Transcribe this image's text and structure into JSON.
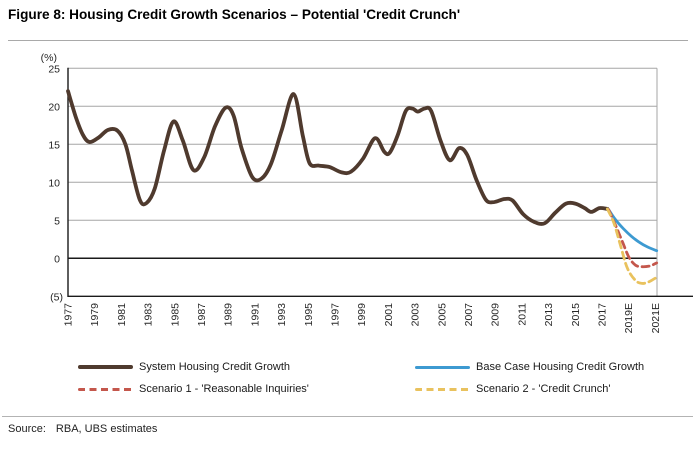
{
  "title": "Figure 8: Housing Credit Growth Scenarios – Potential 'Credit Crunch'",
  "source": {
    "label": "Source:",
    "value": "RBA, UBS estimates"
  },
  "chart_data": {
    "type": "line",
    "title": "Housing Credit Growth Scenarios – Potential 'Credit Crunch'",
    "y_axis": {
      "unit": "(%)",
      "ticks": [
        25,
        20,
        15,
        10,
        5,
        0,
        -5
      ],
      "tick_labels": [
        "25",
        "20",
        "15",
        "10",
        "5",
        "0",
        "(5)"
      ],
      "range": [
        -5,
        25
      ],
      "grid": true
    },
    "x_axis": {
      "tick_labels": [
        "1977",
        "1979",
        "1981",
        "1983",
        "1985",
        "1987",
        "1989",
        "1991",
        "1993",
        "1995",
        "1997",
        "1999",
        "2001",
        "2003",
        "2005",
        "2007",
        "2009",
        "2011",
        "2013",
        "2015",
        "2017",
        "2019E",
        "2021E"
      ],
      "tick_step_years": 2,
      "start_year": 1977,
      "range": [
        1977,
        2021.3
      ]
    },
    "legend_position": "bottom",
    "series": [
      {
        "name": "System Housing Credit Growth",
        "color": "#4f3a2e",
        "style": "solid",
        "width": 3.8,
        "points": [
          [
            1977.0,
            22.0
          ],
          [
            1977.6,
            18.5
          ],
          [
            1978.1,
            16.3
          ],
          [
            1978.6,
            15.3
          ],
          [
            1979.3,
            15.9
          ],
          [
            1980.0,
            16.9
          ],
          [
            1980.7,
            16.8
          ],
          [
            1981.3,
            15.0
          ],
          [
            1981.8,
            11.5
          ],
          [
            1982.4,
            7.6
          ],
          [
            1982.9,
            7.3
          ],
          [
            1983.5,
            9.2
          ],
          [
            1984.2,
            14.2
          ],
          [
            1984.9,
            18.0
          ],
          [
            1985.6,
            15.5
          ],
          [
            1986.4,
            11.6
          ],
          [
            1987.2,
            13.3
          ],
          [
            1988.0,
            17.3
          ],
          [
            1988.8,
            19.8
          ],
          [
            1989.4,
            18.8
          ],
          [
            1990.0,
            14.5
          ],
          [
            1990.8,
            10.7
          ],
          [
            1991.5,
            10.5
          ],
          [
            1992.2,
            12.4
          ],
          [
            1993.0,
            16.8
          ],
          [
            1993.9,
            21.6
          ],
          [
            1994.6,
            16.0
          ],
          [
            1995.1,
            12.5
          ],
          [
            1995.8,
            12.2
          ],
          [
            1996.6,
            12.0
          ],
          [
            1997.5,
            11.3
          ],
          [
            1998.2,
            11.4
          ],
          [
            1999.1,
            13.1
          ],
          [
            2000.0,
            15.8
          ],
          [
            2000.7,
            14.0
          ],
          [
            2001.1,
            13.9
          ],
          [
            2001.7,
            16.2
          ],
          [
            2002.3,
            19.4
          ],
          [
            2002.8,
            19.7
          ],
          [
            2003.2,
            19.3
          ],
          [
            2003.7,
            19.7
          ],
          [
            2004.2,
            19.4
          ],
          [
            2004.9,
            15.5
          ],
          [
            2005.6,
            12.9
          ],
          [
            2006.3,
            14.5
          ],
          [
            2006.9,
            13.6
          ],
          [
            2007.6,
            10.3
          ],
          [
            2008.3,
            7.7
          ],
          [
            2008.9,
            7.4
          ],
          [
            2009.7,
            7.8
          ],
          [
            2010.3,
            7.6
          ],
          [
            2011.1,
            5.8
          ],
          [
            2011.9,
            4.8
          ],
          [
            2012.7,
            4.6
          ],
          [
            2013.5,
            6.0
          ],
          [
            2014.3,
            7.2
          ],
          [
            2015.0,
            7.2
          ],
          [
            2015.7,
            6.6
          ],
          [
            2016.2,
            6.1
          ],
          [
            2016.8,
            6.6
          ],
          [
            2017.4,
            6.5
          ]
        ]
      },
      {
        "name": "Base Case Housing Credit Growth",
        "color": "#3d9ad1",
        "style": "solid",
        "width": 2.8,
        "points": [
          [
            2017.5,
            6.4
          ],
          [
            2018.0,
            5.1
          ],
          [
            2018.6,
            3.9
          ],
          [
            2019.2,
            2.9
          ],
          [
            2019.8,
            2.1
          ],
          [
            2020.4,
            1.5
          ],
          [
            2021.1,
            1.0
          ]
        ]
      },
      {
        "name": "Scenario 1 - 'Reasonable Inquiries'",
        "color": "#c4574c",
        "style": "dashed",
        "width": 2.8,
        "points": [
          [
            2017.5,
            6.4
          ],
          [
            2018.0,
            4.4
          ],
          [
            2018.5,
            2.3
          ],
          [
            2019.0,
            0.2
          ],
          [
            2019.5,
            -0.9
          ],
          [
            2020.0,
            -1.1
          ],
          [
            2020.6,
            -1.0
          ],
          [
            2021.1,
            -0.6
          ]
        ]
      },
      {
        "name": "Scenario 2 - 'Credit Crunch'",
        "color": "#e9c25e",
        "style": "dashed",
        "width": 2.8,
        "points": [
          [
            2017.4,
            6.5
          ],
          [
            2017.9,
            4.6
          ],
          [
            2018.4,
            1.6
          ],
          [
            2018.9,
            -1.3
          ],
          [
            2019.5,
            -2.9
          ],
          [
            2020.0,
            -3.3
          ],
          [
            2020.5,
            -3.1
          ],
          [
            2021.0,
            -2.6
          ]
        ]
      }
    ]
  }
}
